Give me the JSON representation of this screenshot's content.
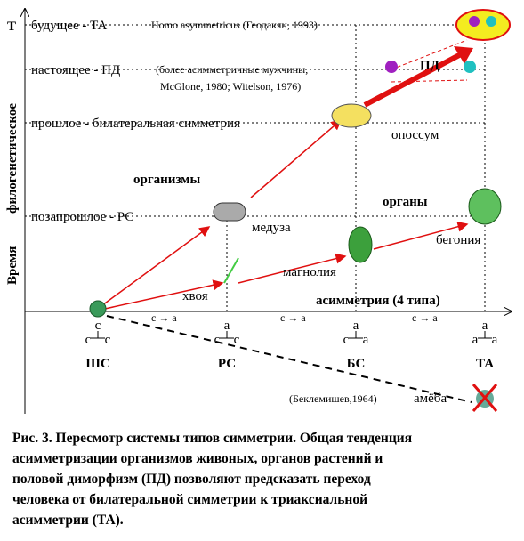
{
  "diagram": {
    "axis_t": "Т",
    "y_label": [
      "Время",
      "филогенетическое"
    ],
    "levels": {
      "future": "будущее -  ТА",
      "present": "настоящее - ПД",
      "past": "прошлое - билатеральная симметрия",
      "preprevious": "позапрошлое - РС"
    },
    "notes": {
      "homo": "Homo asymmetricus (Геодакян, 1993)",
      "men1": "(более асимметричные мужчины,",
      "men2": "McGlone, 1980; Witelson, 1976)",
      "pd": "ПД",
      "beklemishev": "(Беклемишев,1964)"
    },
    "groups": {
      "organisms": "организмы",
      "organs": "органы",
      "asymmetry": "асимметрия (4 типа)"
    },
    "items": {
      "opossum": "опоссум",
      "medusa": "медуза",
      "begonia": "бегония",
      "magnolia": "магнолия",
      "khvoya": "хвоя",
      "amoeba": "амёба"
    },
    "transitions": [
      "c → a",
      "c → a",
      "c → a"
    ],
    "types": [
      {
        "name": "ШС",
        "top": "c",
        "left": "c",
        "right": "c"
      },
      {
        "name": "РС",
        "top": "a",
        "left": "c",
        "right": "c"
      },
      {
        "name": "БС",
        "top": "a",
        "left": "c",
        "right": "a"
      },
      {
        "name": "ТА",
        "top": "a",
        "left": "a",
        "right": "a"
      }
    ],
    "caption": [
      "Рис. 3. Пересмотр системы типов симметрии. Общая тенденция",
      "асимметризации организмов живоных, органов растений и",
      "половой диморфизм (ПД) позволяют предсказать переход",
      "человека от билатеральной симметрии к триаксиальной",
      "асимметрии (ТА)."
    ]
  }
}
